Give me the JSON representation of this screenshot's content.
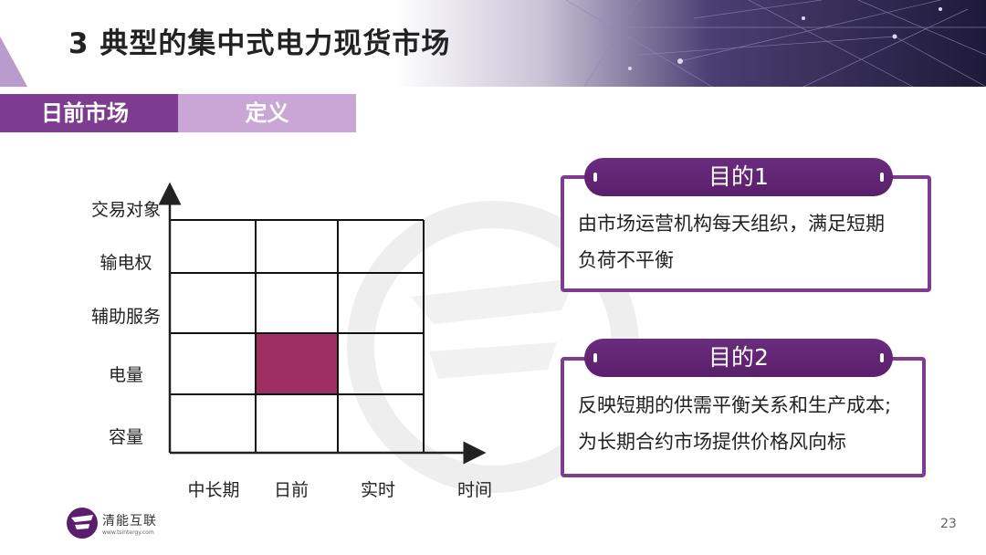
{
  "title": "3 典型的集中式电力现货市场",
  "tabs": [
    {
      "label": "日前市场"
    },
    {
      "label": "定义"
    }
  ],
  "matrix": {
    "rows": [
      "交易对象",
      "输电权",
      "辅助服务",
      "电量",
      "容量"
    ],
    "columns": [
      "中长期",
      "日前",
      "实时",
      "时间"
    ],
    "highlight": {
      "row": "电量",
      "column": "日前"
    },
    "highlight_color": "#9e2f62"
  },
  "purpose1": {
    "label": "目的1",
    "lines": [
      "由市场运营机构每天组织，满足短期",
      "负荷不平衡"
    ]
  },
  "purpose2": {
    "label": "目的2",
    "lines": [
      "反映短期的供需平衡关系和生产成本;",
      "为长期合约市场提供价格风向标"
    ]
  },
  "logo": {
    "name": "清能互联",
    "url": "www.tsintergy.com"
  },
  "page_number": "23",
  "colors": {
    "accent": "#7d3c8f",
    "accent_light": "#c9a6d6",
    "pill": "#5a1f6c"
  }
}
